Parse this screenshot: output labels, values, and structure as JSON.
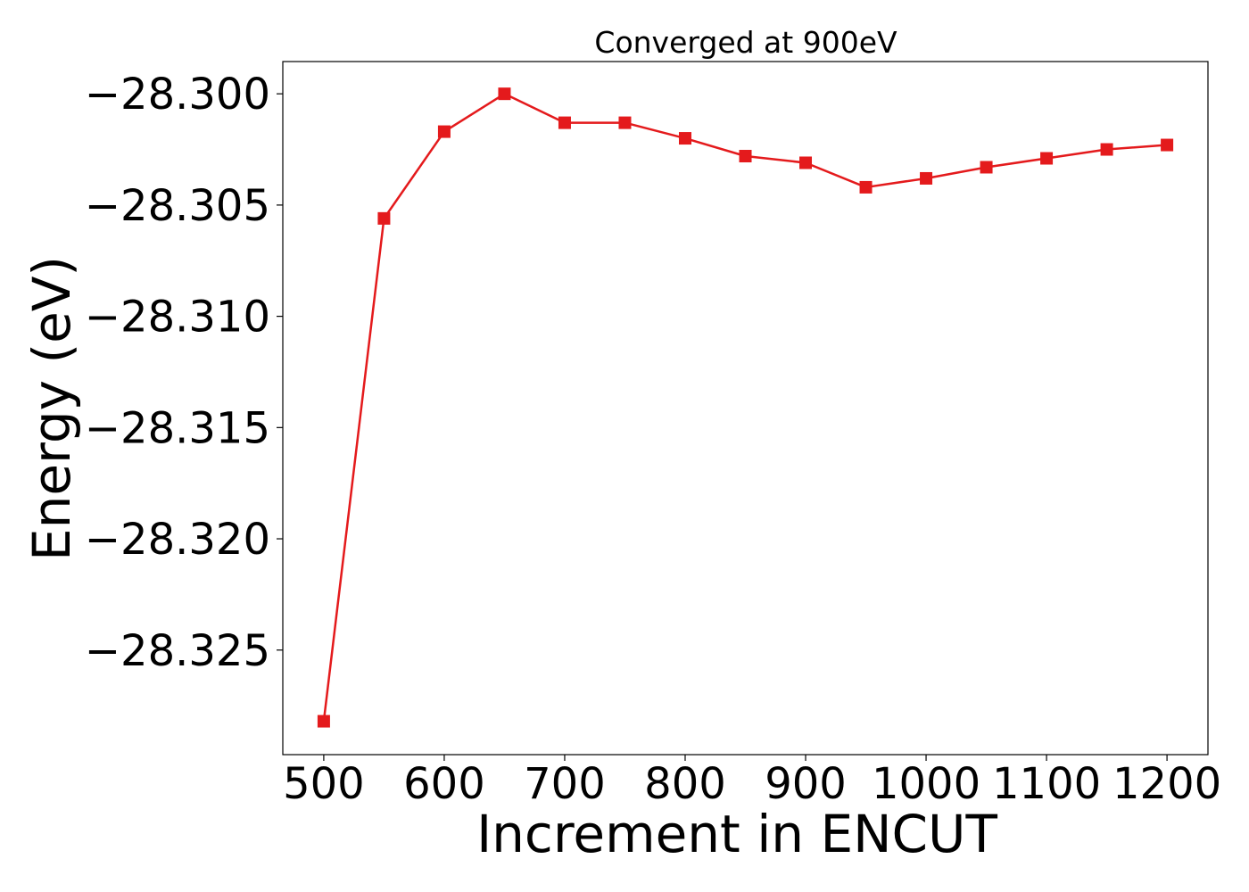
{
  "chart_data": {
    "type": "line",
    "title": "Converged at 900eV",
    "xlabel": "Increment in ENCUT",
    "ylabel": "Energy (eV)",
    "xlim": [
      466,
      1234
    ],
    "ylim": [
      -28.3297,
      -28.29855
    ],
    "x_ticks": [
      500,
      600,
      700,
      800,
      900,
      1000,
      1100,
      1200
    ],
    "y_ticks": [
      -28.3,
      -28.305,
      -28.31,
      -28.315,
      -28.32,
      -28.325
    ],
    "y_tick_labels": [
      "−28.300",
      "−28.305",
      "−28.310",
      "−28.315",
      "−28.320",
      "−28.325"
    ],
    "grid": false,
    "series": [
      {
        "color": "#e41a1c",
        "marker": "square",
        "x": [
          500,
          550,
          600,
          650,
          700,
          750,
          800,
          850,
          900,
          950,
          1000,
          1050,
          1100,
          1150,
          1200
        ],
        "y": [
          -28.3282,
          -28.3056,
          -28.3017,
          -28.3,
          -28.3013,
          -28.3013,
          -28.302,
          -28.3028,
          -28.3031,
          -28.3042,
          -28.3038,
          -28.3033,
          -28.3029,
          -28.3025,
          -28.3023
        ]
      }
    ]
  }
}
